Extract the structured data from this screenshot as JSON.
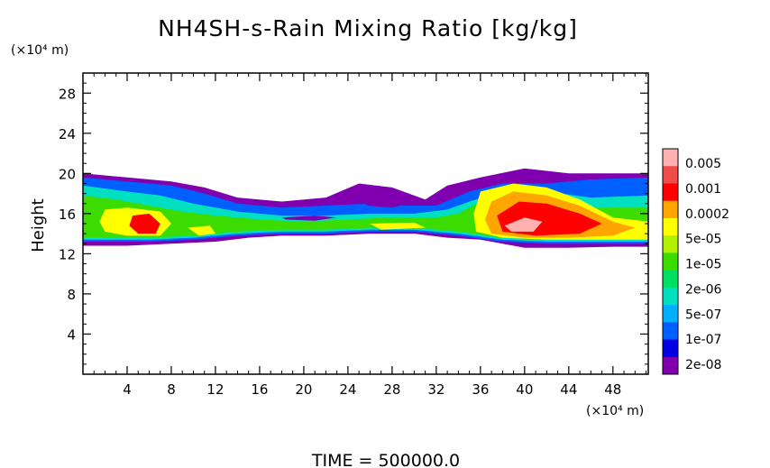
{
  "chart_data": {
    "type": "heatmap",
    "title": "NH4SH-s-Rain Mixing Ratio [kg/kg]",
    "ylabel": "Height",
    "x_unit": "(×10⁴ m)",
    "y_unit": "(×10⁴ m)",
    "footer": "TIME = 500000.0",
    "xlim": [
      0,
      51.2
    ],
    "ylim": [
      0,
      30
    ],
    "x_ticks": [
      4,
      8,
      12,
      16,
      20,
      24,
      28,
      32,
      36,
      40,
      44,
      48
    ],
    "y_ticks": [
      4,
      8,
      12,
      16,
      20,
      24,
      28
    ],
    "colorbar": {
      "labels": [
        "0.005",
        "0.001",
        "0.0002",
        "5e-05",
        "1e-05",
        "2e-06",
        "5e-07",
        "1e-07",
        "2e-08"
      ],
      "colors": [
        "#ffb0b0",
        "#f04a4a",
        "#ff0000",
        "#ffa500",
        "#ffff00",
        "#b0f000",
        "#3cdc00",
        "#00e060",
        "#00e0c0",
        "#00b0ff",
        "#0060ff",
        "#0000e0",
        "#8000b0"
      ]
    },
    "fields": [
      {
        "name": "layer-envelope",
        "level": 12,
        "polygon": [
          [
            0,
            20
          ],
          [
            4,
            19.6
          ],
          [
            8,
            19.2
          ],
          [
            11,
            18.6
          ],
          [
            14,
            17.6
          ],
          [
            18,
            17.2
          ],
          [
            22,
            17.6
          ],
          [
            25,
            19
          ],
          [
            28,
            18.6
          ],
          [
            31,
            17.4
          ],
          [
            33,
            18.8
          ],
          [
            36,
            19.6
          ],
          [
            40,
            20.5
          ],
          [
            44,
            20
          ],
          [
            48,
            20
          ],
          [
            51.2,
            20
          ],
          [
            51.2,
            12.7
          ],
          [
            48,
            12.7
          ],
          [
            44,
            12.6
          ],
          [
            40,
            12.6
          ],
          [
            36,
            13.4
          ],
          [
            33,
            13.6
          ],
          [
            30,
            14
          ],
          [
            26,
            14
          ],
          [
            22,
            13.8
          ],
          [
            18,
            13.8
          ],
          [
            15,
            13.6
          ],
          [
            12,
            13.2
          ],
          [
            8,
            13
          ],
          [
            4,
            12.8
          ],
          [
            0,
            12.8
          ]
        ]
      },
      {
        "name": "upper-blue",
        "level": 10,
        "polygon": [
          [
            0,
            19.6
          ],
          [
            4,
            19.2
          ],
          [
            8,
            18.8
          ],
          [
            11,
            18
          ],
          [
            14,
            17
          ],
          [
            18,
            16.6
          ],
          [
            22,
            16.8
          ],
          [
            26,
            17
          ],
          [
            29,
            16.8
          ],
          [
            32,
            16.8
          ],
          [
            35,
            18.2
          ],
          [
            38,
            19
          ],
          [
            42,
            19
          ],
          [
            46,
            19.4
          ],
          [
            51.2,
            19.6
          ],
          [
            51.2,
            13
          ],
          [
            46,
            13
          ],
          [
            42,
            13
          ],
          [
            38,
            13.2
          ],
          [
            34,
            13.8
          ],
          [
            30,
            14.2
          ],
          [
            26,
            14.2
          ],
          [
            22,
            14
          ],
          [
            18,
            14
          ],
          [
            14,
            13.8
          ],
          [
            10,
            13.4
          ],
          [
            6,
            13.2
          ],
          [
            2,
            13.2
          ],
          [
            0,
            13.2
          ]
        ]
      },
      {
        "name": "cyan-band",
        "level": 8,
        "polygon": [
          [
            0,
            18.8
          ],
          [
            4,
            18.2
          ],
          [
            7,
            17.8
          ],
          [
            10,
            17
          ],
          [
            14,
            16.2
          ],
          [
            18,
            15.8
          ],
          [
            22,
            15.8
          ],
          [
            26,
            16
          ],
          [
            30,
            16
          ],
          [
            33,
            16.4
          ],
          [
            35,
            17.2
          ],
          [
            38,
            18.2
          ],
          [
            42,
            18.2
          ],
          [
            46,
            17.6
          ],
          [
            51.2,
            17.8
          ],
          [
            51.2,
            13.2
          ],
          [
            46,
            13.2
          ],
          [
            42,
            13.2
          ],
          [
            38,
            13.4
          ],
          [
            34,
            14
          ],
          [
            30,
            14.4
          ],
          [
            26,
            14.4
          ],
          [
            22,
            14.2
          ],
          [
            18,
            14.2
          ],
          [
            14,
            14
          ],
          [
            10,
            13.6
          ],
          [
            6,
            13.4
          ],
          [
            2,
            13.4
          ],
          [
            0,
            13.4
          ]
        ]
      },
      {
        "name": "green-band",
        "level": 6,
        "polygon": [
          [
            0,
            17.8
          ],
          [
            3,
            17.4
          ],
          [
            6,
            16.8
          ],
          [
            9,
            16.2
          ],
          [
            12,
            15.8
          ],
          [
            16,
            15.4
          ],
          [
            20,
            15.2
          ],
          [
            24,
            15.4
          ],
          [
            28,
            15.6
          ],
          [
            32,
            15.6
          ],
          [
            34,
            16
          ],
          [
            36,
            17.2
          ],
          [
            39,
            18
          ],
          [
            42,
            17.4
          ],
          [
            46,
            16.6
          ],
          [
            51.2,
            16.6
          ],
          [
            51.2,
            13.4
          ],
          [
            46,
            13.4
          ],
          [
            42,
            13.4
          ],
          [
            38,
            13.6
          ],
          [
            34,
            14.2
          ],
          [
            30,
            14.6
          ],
          [
            26,
            14.6
          ],
          [
            22,
            14.4
          ],
          [
            18,
            14.4
          ],
          [
            14,
            14.2
          ],
          [
            10,
            13.8
          ],
          [
            6,
            13.6
          ],
          [
            2,
            13.6
          ],
          [
            0,
            13.6
          ]
        ]
      },
      {
        "name": "yellow-west",
        "level": 4,
        "polygon": [
          [
            2,
            16.4
          ],
          [
            4,
            16.6
          ],
          [
            7,
            16.2
          ],
          [
            8,
            15
          ],
          [
            7,
            13.8
          ],
          [
            4,
            13.8
          ],
          [
            2,
            14.2
          ],
          [
            1.5,
            15.2
          ]
        ]
      },
      {
        "name": "red-west",
        "level": 2,
        "polygon": [
          [
            4.5,
            15.8
          ],
          [
            6,
            16
          ],
          [
            7,
            15
          ],
          [
            6.6,
            14
          ],
          [
            5,
            14
          ],
          [
            4.2,
            14.8
          ]
        ]
      },
      {
        "name": "yellow-mid",
        "level": 4,
        "polygon": [
          [
            9.5,
            14.6
          ],
          [
            11.5,
            14.8
          ],
          [
            12,
            14
          ],
          [
            10.5,
            13.8
          ]
        ]
      },
      {
        "name": "yellow-center",
        "level": 4,
        "polygon": [
          [
            26,
            15
          ],
          [
            30,
            15.1
          ],
          [
            31,
            14.6
          ],
          [
            27,
            14.4
          ]
        ]
      },
      {
        "name": "yellow-east",
        "level": 4,
        "polygon": [
          [
            36,
            18.2
          ],
          [
            39,
            19
          ],
          [
            42,
            18.6
          ],
          [
            45,
            17.4
          ],
          [
            48,
            15.6
          ],
          [
            51.2,
            15.2
          ],
          [
            51.2,
            13.4
          ],
          [
            46,
            13.4
          ],
          [
            42,
            13.4
          ],
          [
            38,
            13.6
          ],
          [
            35.6,
            14.2
          ],
          [
            35.4,
            16
          ]
        ]
      },
      {
        "name": "orange-east",
        "level": 3,
        "polygon": [
          [
            37,
            17.2
          ],
          [
            39,
            18.2
          ],
          [
            42,
            17.8
          ],
          [
            45,
            16.8
          ],
          [
            48,
            15.2
          ],
          [
            50,
            14.6
          ],
          [
            48,
            13.8
          ],
          [
            44,
            13.6
          ],
          [
            40,
            13.6
          ],
          [
            37,
            14
          ],
          [
            36.4,
            15.4
          ]
        ]
      },
      {
        "name": "red-east",
        "level": 2,
        "polygon": [
          [
            37.5,
            15.8
          ],
          [
            39.5,
            17.2
          ],
          [
            42,
            17
          ],
          [
            45,
            16
          ],
          [
            47,
            15
          ],
          [
            45,
            14
          ],
          [
            41,
            13.8
          ],
          [
            38,
            14.2
          ]
        ]
      },
      {
        "name": "pink-core",
        "level": 0,
        "polygon": [
          [
            38.2,
            14.8
          ],
          [
            40,
            15.6
          ],
          [
            41.6,
            15.2
          ],
          [
            40.8,
            14.2
          ],
          [
            38.8,
            14.2
          ]
        ]
      },
      {
        "name": "purple-patch-center",
        "level": 12,
        "polygon": [
          [
            25.2,
            17.2
          ],
          [
            26.5,
            18.3
          ],
          [
            29,
            18
          ],
          [
            30.2,
            17.2
          ],
          [
            28,
            16.6
          ],
          [
            25.8,
            16.8
          ]
        ]
      },
      {
        "name": "purple-patch-left",
        "level": 12,
        "polygon": [
          [
            18,
            15.6
          ],
          [
            21,
            15.8
          ],
          [
            23,
            15.6
          ],
          [
            21,
            15.3
          ],
          [
            18.4,
            15.4
          ]
        ]
      }
    ]
  }
}
